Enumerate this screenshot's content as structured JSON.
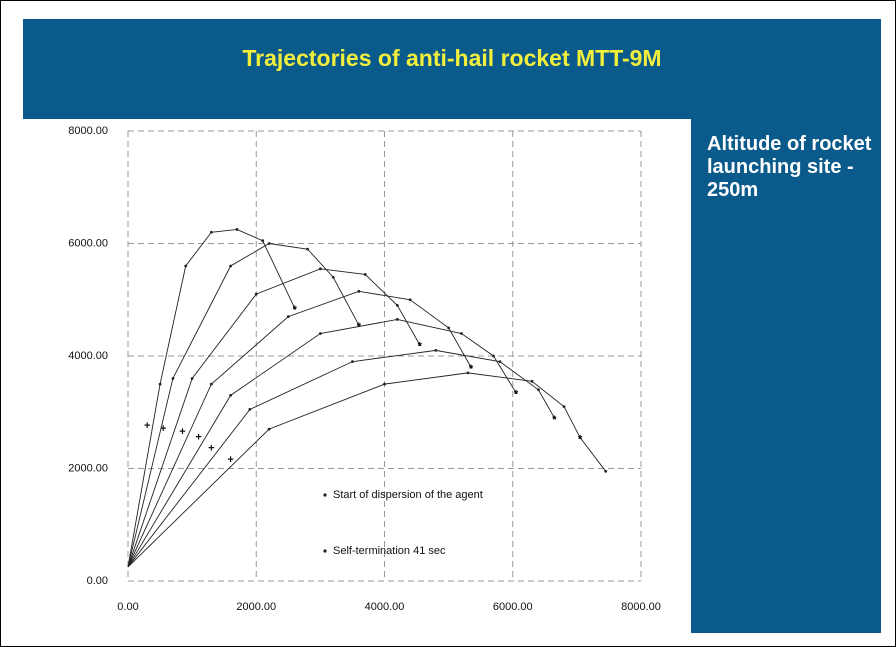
{
  "chart_data": {
    "type": "line",
    "title": "Trajectories of anti-hail rocket MTT-9M",
    "annotation": "Altitude of rocket launching site - 250m",
    "legend": [
      "Start of dispersion of the agent",
      "Self-termination   41 sec"
    ],
    "xlim": [
      0,
      8000
    ],
    "ylim": [
      0,
      8000
    ],
    "xticks": [
      {
        "value": 0,
        "label": "0.00"
      },
      {
        "value": 2000,
        "label": "2000.00"
      },
      {
        "value": 4000,
        "label": "4000.00"
      },
      {
        "value": 6000,
        "label": "6000.00"
      },
      {
        "value": 8000,
        "label": "8000.00"
      }
    ],
    "yticks": [
      {
        "value": 0,
        "label": "0.00"
      },
      {
        "value": 2000,
        "label": "2000.00"
      },
      {
        "value": 4000,
        "label": "4000.00"
      },
      {
        "value": 6000,
        "label": "6000.00"
      },
      {
        "value": 8000,
        "label": "8000.00"
      }
    ],
    "grid": true,
    "color": "#222222",
    "series": [
      {
        "x": [
          0,
          500,
          900,
          1300,
          1700,
          2100,
          2600
        ],
        "values": [
          250,
          3500,
          5600,
          6200,
          6250,
          6050,
          4850
        ]
      },
      {
        "x": [
          0,
          700,
          1600,
          2200,
          2800,
          3200,
          3600
        ],
        "values": [
          250,
          3600,
          5600,
          6000,
          5900,
          5400,
          4550
        ]
      },
      {
        "x": [
          0,
          1000,
          2000,
          3000,
          3700,
          4200,
          4550
        ],
        "values": [
          250,
          3600,
          5100,
          5550,
          5450,
          4900,
          4200
        ]
      },
      {
        "x": [
          0,
          1300,
          2500,
          3600,
          4400,
          5000,
          5350
        ],
        "values": [
          250,
          3500,
          4700,
          5150,
          5000,
          4500,
          3800
        ]
      },
      {
        "x": [
          0,
          1600,
          3000,
          4200,
          5200,
          5700,
          6050
        ],
        "values": [
          250,
          3300,
          4400,
          4650,
          4400,
          4000,
          3350
        ]
      },
      {
        "x": [
          0,
          1900,
          3500,
          4800,
          5800,
          6400,
          6650
        ],
        "values": [
          250,
          3050,
          3900,
          4100,
          3900,
          3400,
          2900
        ]
      },
      {
        "x": [
          0,
          2200,
          4000,
          5300,
          6300,
          6800,
          7050,
          7450
        ],
        "values": [
          250,
          2700,
          3500,
          3700,
          3550,
          3100,
          2550,
          1950
        ]
      }
    ],
    "dispersion_points": {
      "x": [
        300,
        550,
        850,
        1100,
        1300,
        1600
      ],
      "values": [
        2750,
        2700,
        2650,
        2550,
        2350,
        2150
      ]
    },
    "termination_points": {
      "x": [
        2600,
        3600,
        4550,
        5350,
        6050,
        6650,
        7050
      ],
      "values": [
        4850,
        4550,
        4200,
        3800,
        3350,
        2900,
        2550
      ]
    }
  }
}
